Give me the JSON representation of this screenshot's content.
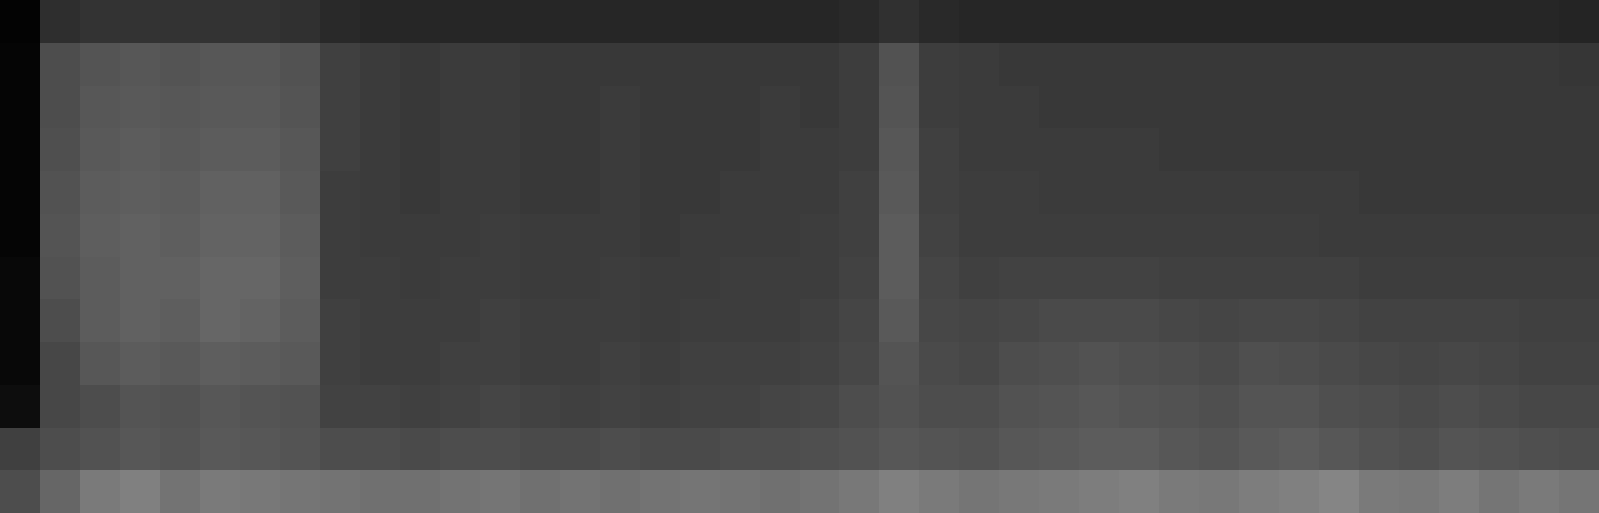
{
  "chart_data": {
    "type": "heatmap",
    "tick_labels": false,
    "zlim": [
      0,
      100
    ],
    "cells": [
      [
        30,
        40,
        48,
        50,
        45,
        48,
        47,
        46,
        45,
        44,
        44,
        45,
        46,
        44,
        45,
        44,
        45,
        46,
        45,
        44,
        45,
        47,
        50,
        48,
        46,
        47,
        48,
        49,
        50,
        48,
        47,
        49,
        50,
        52,
        48,
        47,
        49,
        46,
        48,
        46
      ],
      [
        25,
        30,
        32,
        34,
        33,
        35,
        34,
        33,
        30,
        30,
        29,
        30,
        30,
        29,
        29,
        30,
        29,
        29,
        30,
        30,
        31,
        32,
        34,
        33,
        32,
        34,
        35,
        36,
        36,
        34,
        33,
        35,
        36,
        34,
        32,
        31,
        33,
        32,
        31,
        30
      ],
      [
        5,
        28,
        30,
        33,
        32,
        34,
        33,
        32,
        26,
        26,
        25,
        26,
        27,
        26,
        25,
        26,
        25,
        26,
        26,
        27,
        28,
        30,
        32,
        30,
        30,
        32,
        33,
        34,
        33,
        32,
        31,
        33,
        33,
        31,
        30,
        29,
        30,
        29,
        28,
        28
      ],
      [
        3,
        28,
        34,
        36,
        35,
        37,
        36,
        35,
        25,
        24,
        24,
        25,
        25,
        24,
        24,
        25,
        24,
        25,
        25,
        25,
        26,
        28,
        33,
        29,
        28,
        30,
        31,
        32,
        31,
        30,
        29,
        31,
        30,
        29,
        28,
        27,
        28,
        27,
        26,
        26
      ],
      [
        3,
        30,
        36,
        38,
        37,
        40,
        39,
        36,
        25,
        24,
        24,
        24,
        25,
        24,
        24,
        24,
        23,
        24,
        24,
        24,
        25,
        27,
        35,
        28,
        27,
        28,
        29,
        29,
        29,
        28,
        27,
        28,
        28,
        27,
        26,
        26,
        26,
        26,
        25,
        25
      ],
      [
        3,
        32,
        36,
        38,
        38,
        40,
        40,
        37,
        24,
        24,
        23,
        24,
        24,
        23,
        23,
        24,
        23,
        23,
        24,
        24,
        24,
        26,
        36,
        27,
        25,
        26,
        26,
        26,
        26,
        25,
        25,
        25,
        25,
        25,
        24,
        24,
        24,
        24,
        24,
        24
      ],
      [
        2,
        33,
        37,
        38,
        37,
        39,
        39,
        36,
        24,
        23,
        23,
        23,
        24,
        23,
        23,
        23,
        22,
        23,
        23,
        23,
        24,
        25,
        36,
        26,
        24,
        24,
        24,
        24,
        24,
        24,
        24,
        24,
        24,
        23,
        23,
        23,
        23,
        23,
        23,
        23
      ],
      [
        2,
        32,
        36,
        37,
        36,
        38,
        38,
        35,
        24,
        23,
        22,
        23,
        23,
        22,
        22,
        23,
        22,
        22,
        23,
        23,
        23,
        25,
        35,
        25,
        24,
        24,
        23,
        23,
        23,
        23,
        23,
        23,
        23,
        23,
        22,
        22,
        22,
        22,
        22,
        22
      ],
      [
        2,
        31,
        35,
        36,
        35,
        36,
        36,
        34,
        25,
        23,
        22,
        23,
        23,
        22,
        22,
        23,
        22,
        22,
        22,
        23,
        23,
        24,
        34,
        25,
        23,
        23,
        23,
        23,
        23,
        22,
        22,
        22,
        22,
        22,
        22,
        22,
        22,
        22,
        22,
        22
      ],
      [
        2,
        30,
        34,
        35,
        34,
        35,
        35,
        33,
        25,
        23,
        22,
        23,
        23,
        22,
        22,
        23,
        22,
        22,
        22,
        23,
        22,
        24,
        33,
        24,
        23,
        23,
        22,
        22,
        22,
        22,
        22,
        22,
        22,
        22,
        22,
        22,
        22,
        22,
        22,
        22
      ],
      [
        2,
        30,
        33,
        34,
        33,
        34,
        34,
        32,
        25,
        23,
        22,
        23,
        23,
        22,
        22,
        22,
        22,
        22,
        22,
        22,
        22,
        24,
        32,
        24,
        23,
        22,
        22,
        22,
        22,
        22,
        22,
        22,
        22,
        22,
        22,
        22,
        22,
        22,
        22,
        21
      ],
      [
        1,
        18,
        20,
        20,
        20,
        20,
        20,
        19,
        16,
        15,
        15,
        15,
        15,
        15,
        15,
        15,
        15,
        15,
        15,
        15,
        15,
        16,
        19,
        16,
        15,
        15,
        15,
        15,
        15,
        15,
        15,
        15,
        15,
        15,
        15,
        15,
        15,
        15,
        15,
        14
      ]
    ]
  }
}
